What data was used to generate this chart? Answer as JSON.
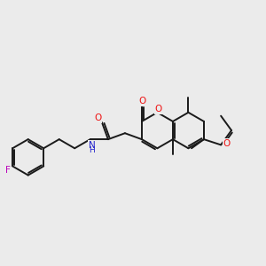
{
  "bg_color": "#ebebeb",
  "bond_color": "#1a1a1a",
  "bond_width": 1.4,
  "figsize": [
    3.0,
    3.0
  ],
  "dpi": 100,
  "atom_colors": {
    "O": "#ee1111",
    "N": "#2222cc",
    "F": "#bb00bb",
    "C": "#1a1a1a"
  },
  "font_size": 7.5,
  "font_size_small": 6.5
}
